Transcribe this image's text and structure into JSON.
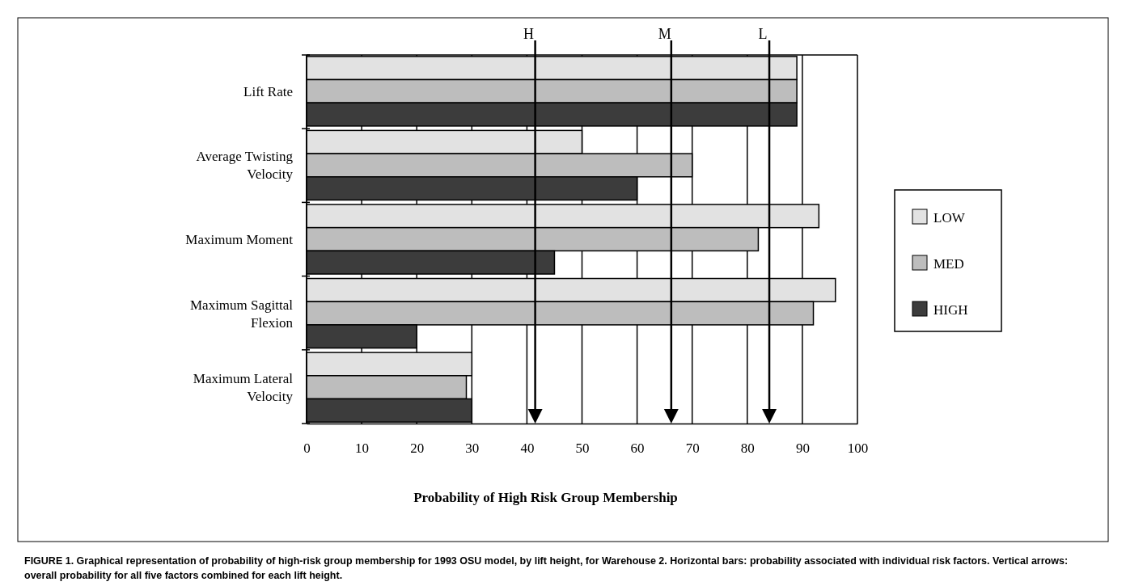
{
  "chart_data": {
    "type": "bar",
    "orientation": "horizontal",
    "xlabel": "Probability of High Risk Group Membership",
    "categories": [
      "Lift Rate",
      "Average Twisting Velocity",
      "Maximum Moment",
      "Maximum Sagittal Flexion",
      "Maximum Lateral Velocity"
    ],
    "series": [
      {
        "name": "LOW",
        "color": "#e2e2e2",
        "values": [
          89,
          50,
          93,
          96,
          30
        ]
      },
      {
        "name": "MED",
        "color": "#bdbdbd",
        "values": [
          89,
          70,
          82,
          92,
          29
        ]
      },
      {
        "name": "HIGH",
        "color": "#3c3c3c",
        "values": [
          89,
          60,
          45,
          20,
          30
        ]
      }
    ],
    "xlim": [
      0,
      100
    ],
    "xticks": [
      0,
      10,
      20,
      30,
      40,
      50,
      60,
      70,
      80,
      90,
      100
    ],
    "grid": "x",
    "legend": "right",
    "ref_lines": [
      {
        "axis": "x",
        "value": 41.5,
        "label": "H"
      },
      {
        "axis": "x",
        "value": 66.2,
        "label": "M"
      },
      {
        "axis": "x",
        "value": 84,
        "label": "L"
      }
    ],
    "annotations": [
      "FIGURE 1. Graphical representation of probability of high-risk group membership for 1993 OSU model, by lift height, for Warehouse 2. Horizontal bars: probability associated with individual risk factors. Vertical arrows: overall probability for all five factors combined for each lift height."
    ]
  }
}
